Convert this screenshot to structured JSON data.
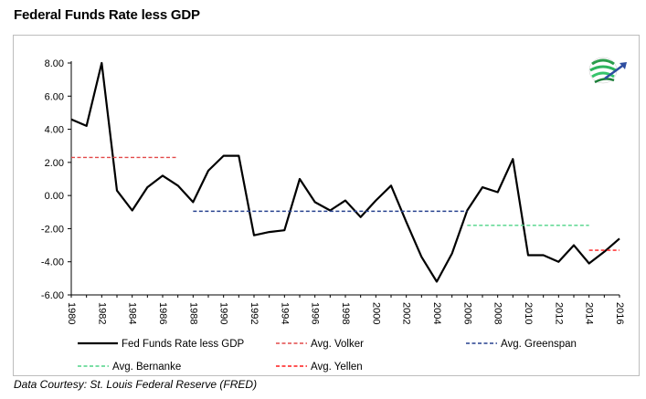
{
  "title": "Federal Funds Rate less GDP",
  "source": "Data Courtesy: St. Louis Federal Reserve (FRED)",
  "chart_data": {
    "type": "line",
    "x": [
      1980,
      1981,
      1982,
      1983,
      1984,
      1985,
      1986,
      1987,
      1988,
      1989,
      1990,
      1991,
      1992,
      1993,
      1994,
      1995,
      1996,
      1997,
      1998,
      1999,
      2000,
      2001,
      2002,
      2003,
      2004,
      2005,
      2006,
      2007,
      2008,
      2009,
      2010,
      2011,
      2012,
      2013,
      2014,
      2015,
      2016
    ],
    "series": [
      {
        "name": "Fed Funds Rate less GDP",
        "color": "#000000",
        "style": "solid",
        "values": [
          4.6,
          4.2,
          8.0,
          0.3,
          -0.9,
          0.5,
          1.2,
          0.6,
          -0.4,
          1.5,
          2.4,
          2.4,
          -2.4,
          -2.2,
          -2.1,
          1.0,
          -0.4,
          -0.9,
          -0.3,
          -1.3,
          -0.3,
          0.6,
          -1.6,
          -3.7,
          -5.2,
          -3.5,
          -0.9,
          0.5,
          0.2,
          2.2,
          -3.6,
          -3.6,
          -4.0,
          -3.0,
          -4.1,
          -3.4,
          -2.6
        ]
      },
      {
        "name": "Avg. Volker",
        "color": "#e24a4a",
        "style": "dashed",
        "x_range": [
          1980,
          1987
        ],
        "value": 2.3
      },
      {
        "name": "Avg. Greenspan",
        "color": "#26418f",
        "style": "dashed",
        "x_range": [
          1988,
          2006
        ],
        "value": -0.95
      },
      {
        "name": "Avg. Bernanke",
        "color": "#4fd487",
        "style": "dashed",
        "x_range": [
          2006,
          2014
        ],
        "value": -1.8
      },
      {
        "name": "Avg. Yellen",
        "color": "#ff1a1a",
        "style": "dashed",
        "x_range": [
          2014,
          2016
        ],
        "value": -3.3
      }
    ],
    "y_ticks": [
      "8.00",
      "6.00",
      "4.00",
      "2.00",
      "0.00",
      "-2.00",
      "-4.00",
      "-6.00"
    ],
    "x_ticks": [
      "1980",
      "1982",
      "1984",
      "1986",
      "1988",
      "1990",
      "1992",
      "1994",
      "1996",
      "1998",
      "2000",
      "2002",
      "2004",
      "2006",
      "2008",
      "2010",
      "2012",
      "2014",
      "2016"
    ],
    "ylim": [
      -6,
      8
    ],
    "xlim": [
      1980,
      2016
    ],
    "grid": false,
    "legend_position": "bottom"
  },
  "logo_icon": "globe-arrow-logo"
}
